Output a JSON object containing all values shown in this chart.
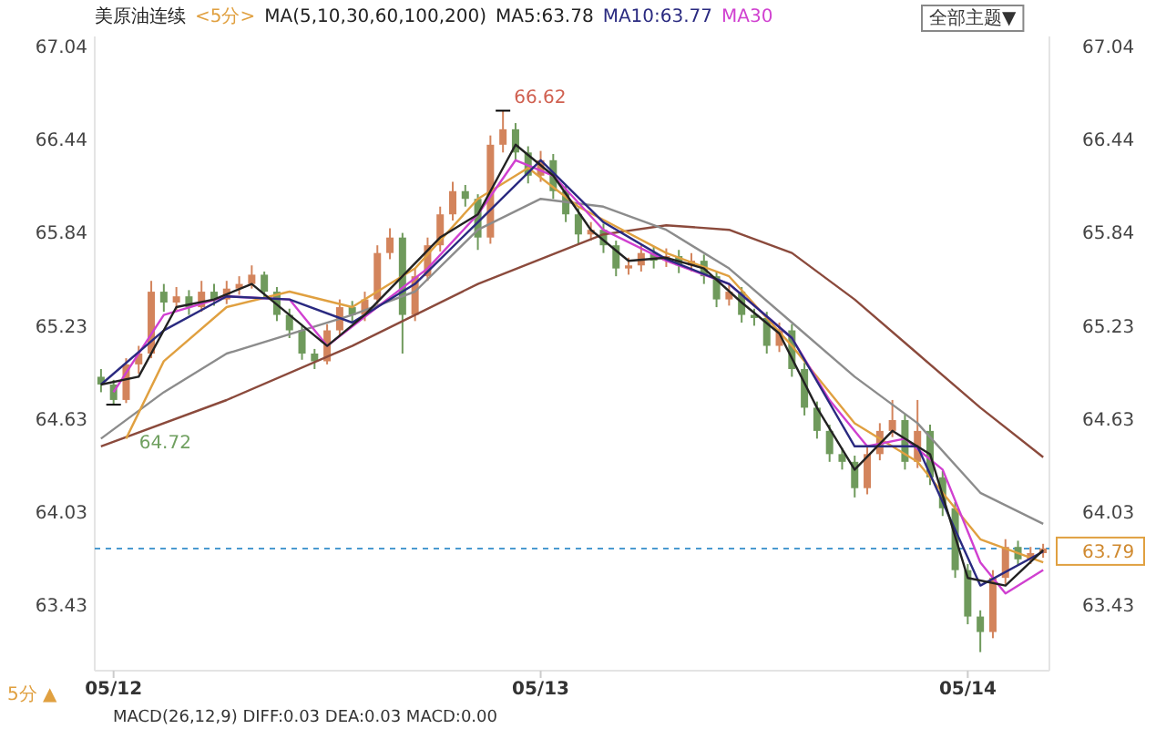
{
  "chart_data": {
    "type": "candlestick",
    "title": "美原油连续",
    "subtitle": "<5分>",
    "legend_title": "MA(5,10,30,60,100,200)",
    "legend": "top",
    "grid": false,
    "categories": [
      null,
      "05/12",
      null,
      null,
      null,
      null,
      null,
      null,
      null,
      null,
      null,
      null,
      null,
      null,
      null,
      null,
      null,
      null,
      null,
      null,
      null,
      null,
      null,
      null,
      null,
      null,
      null,
      null,
      null,
      null,
      null,
      null,
      null,
      null,
      null,
      "05/13",
      null,
      null,
      null,
      null,
      null,
      null,
      null,
      null,
      null,
      null,
      null,
      null,
      null,
      null,
      null,
      null,
      null,
      null,
      null,
      null,
      null,
      null,
      null,
      null,
      null,
      null,
      null,
      null,
      null,
      null,
      null,
      null,
      null,
      "05/14",
      null,
      null,
      null,
      null,
      null,
      null
    ],
    "ohlc": [
      [
        64.9,
        64.95,
        64.8,
        64.85
      ],
      [
        64.85,
        64.88,
        64.72,
        64.75
      ],
      [
        64.75,
        65.02,
        64.73,
        64.98
      ],
      [
        64.98,
        65.1,
        64.92,
        65.05
      ],
      [
        65.05,
        65.52,
        65.02,
        65.45
      ],
      [
        65.45,
        65.5,
        65.32,
        65.38
      ],
      [
        65.38,
        65.48,
        65.33,
        65.42
      ],
      [
        65.42,
        65.46,
        65.3,
        65.35
      ],
      [
        65.35,
        65.52,
        65.32,
        65.45
      ],
      [
        65.45,
        65.5,
        65.36,
        65.4
      ],
      [
        65.4,
        65.52,
        65.37,
        65.47
      ],
      [
        65.47,
        65.55,
        65.43,
        65.5
      ],
      [
        65.5,
        65.62,
        65.47,
        65.56
      ],
      [
        65.56,
        65.58,
        65.41,
        65.45
      ],
      [
        65.45,
        65.48,
        65.26,
        65.3
      ],
      [
        65.3,
        65.34,
        65.15,
        65.2
      ],
      [
        65.2,
        65.23,
        65.01,
        65.05
      ],
      [
        65.05,
        65.08,
        64.95,
        65.0
      ],
      [
        65.0,
        65.24,
        64.98,
        65.2
      ],
      [
        65.2,
        65.4,
        65.16,
        65.35
      ],
      [
        65.35,
        65.39,
        65.25,
        65.3
      ],
      [
        65.3,
        65.45,
        65.26,
        65.4
      ],
      [
        65.4,
        65.75,
        65.37,
        65.7
      ],
      [
        65.7,
        65.86,
        65.66,
        65.8
      ],
      [
        65.8,
        65.83,
        65.05,
        65.3
      ],
      [
        65.3,
        65.6,
        65.26,
        65.55
      ],
      [
        65.55,
        65.8,
        65.52,
        65.75
      ],
      [
        65.75,
        66.0,
        65.71,
        65.95
      ],
      [
        65.95,
        66.16,
        65.91,
        66.1
      ],
      [
        66.1,
        66.14,
        66.0,
        66.05
      ],
      [
        66.05,
        66.08,
        65.72,
        65.8
      ],
      [
        65.8,
        66.46,
        65.76,
        66.4
      ],
      [
        66.4,
        66.62,
        66.35,
        66.5
      ],
      [
        66.5,
        66.54,
        66.3,
        66.35
      ],
      [
        66.35,
        66.39,
        66.15,
        66.2
      ],
      [
        66.2,
        66.36,
        66.16,
        66.3
      ],
      [
        66.3,
        66.34,
        66.05,
        66.1
      ],
      [
        66.1,
        66.14,
        65.9,
        65.95
      ],
      [
        65.95,
        65.99,
        65.76,
        65.82
      ],
      [
        65.82,
        65.9,
        65.78,
        65.85
      ],
      [
        65.85,
        65.89,
        65.7,
        65.75
      ],
      [
        65.75,
        65.78,
        65.55,
        65.6
      ],
      [
        65.6,
        65.67,
        65.56,
        65.62
      ],
      [
        65.62,
        65.75,
        65.58,
        65.7
      ],
      [
        65.7,
        65.74,
        65.6,
        65.65
      ],
      [
        65.65,
        65.73,
        65.61,
        65.68
      ],
      [
        65.68,
        65.72,
        65.57,
        65.62
      ],
      [
        65.62,
        65.7,
        65.58,
        65.65
      ],
      [
        65.65,
        65.69,
        65.5,
        65.55
      ],
      [
        65.55,
        65.58,
        65.35,
        65.4
      ],
      [
        65.4,
        65.5,
        65.36,
        65.45
      ],
      [
        65.45,
        65.48,
        65.25,
        65.3
      ],
      [
        65.3,
        65.34,
        65.23,
        65.28
      ],
      [
        65.28,
        65.32,
        65.05,
        65.1
      ],
      [
        65.1,
        65.25,
        65.06,
        65.2
      ],
      [
        65.2,
        65.24,
        64.9,
        64.95
      ],
      [
        64.95,
        64.99,
        64.65,
        64.7
      ],
      [
        64.7,
        64.74,
        64.5,
        64.55
      ],
      [
        64.55,
        64.59,
        64.35,
        64.4
      ],
      [
        64.4,
        64.44,
        64.3,
        64.35
      ],
      [
        64.35,
        64.39,
        64.12,
        64.18
      ],
      [
        64.18,
        64.45,
        64.14,
        64.4
      ],
      [
        64.4,
        64.6,
        64.36,
        64.55
      ],
      [
        64.55,
        64.75,
        64.51,
        64.62
      ],
      [
        64.62,
        64.66,
        64.3,
        64.35
      ],
      [
        64.35,
        64.75,
        64.31,
        64.55
      ],
      [
        64.55,
        64.59,
        64.2,
        64.25
      ],
      [
        64.25,
        64.29,
        64.0,
        64.05
      ],
      [
        64.05,
        64.09,
        63.6,
        63.65
      ],
      [
        63.65,
        63.69,
        63.3,
        63.35
      ],
      [
        63.35,
        63.39,
        63.12,
        63.25
      ],
      [
        63.25,
        63.65,
        63.21,
        63.6
      ],
      [
        63.6,
        63.85,
        63.56,
        63.8
      ],
      [
        63.8,
        63.84,
        63.68,
        63.72
      ],
      [
        63.72,
        63.8,
        63.69,
        63.76
      ],
      [
        63.76,
        63.82,
        63.73,
        63.79
      ]
    ],
    "series": [
      {
        "type": "line",
        "color": "#8b4a3c",
        "values": [
          64.45,
          null,
          null,
          null,
          null,
          null,
          null,
          null,
          null,
          null,
          64.75,
          null,
          null,
          null,
          null,
          null,
          null,
          null,
          null,
          null,
          65.1,
          null,
          null,
          null,
          null,
          null,
          null,
          null,
          null,
          null,
          65.5,
          null,
          null,
          null,
          null,
          null,
          null,
          null,
          null,
          null,
          65.82,
          null,
          null,
          null,
          null,
          65.88,
          null,
          null,
          null,
          null,
          65.85,
          null,
          null,
          null,
          null,
          65.7,
          null,
          null,
          null,
          null,
          65.4,
          null,
          null,
          null,
          null,
          65.05,
          null,
          null,
          null,
          null,
          64.7,
          null,
          null,
          null,
          null,
          64.38
        ]
      },
      {
        "type": "line",
        "color": "#8c8c8c",
        "values": [
          64.5,
          null,
          null,
          null,
          null,
          64.8,
          null,
          null,
          null,
          null,
          65.05,
          null,
          null,
          null,
          null,
          null,
          null,
          null,
          null,
          null,
          65.3,
          null,
          null,
          null,
          null,
          65.45,
          null,
          null,
          null,
          null,
          65.85,
          null,
          null,
          null,
          null,
          66.05,
          null,
          null,
          null,
          null,
          66.0,
          null,
          null,
          null,
          null,
          65.85,
          null,
          null,
          null,
          null,
          65.6,
          null,
          null,
          null,
          null,
          65.25,
          null,
          null,
          null,
          null,
          64.9,
          null,
          null,
          null,
          null,
          64.6,
          null,
          null,
          null,
          null,
          64.15,
          null,
          null,
          null,
          null,
          63.95
        ]
      },
      {
        "type": "line",
        "color": "#e0a040",
        "values": [
          null,
          null,
          64.5,
          null,
          null,
          65.0,
          null,
          null,
          null,
          null,
          65.35,
          null,
          null,
          null,
          null,
          65.45,
          null,
          null,
          null,
          null,
          65.35,
          null,
          null,
          null,
          null,
          65.6,
          null,
          null,
          null,
          null,
          66.05,
          null,
          null,
          null,
          66.25,
          null,
          null,
          null,
          66.0,
          null,
          null,
          null,
          null,
          null,
          null,
          65.7,
          null,
          null,
          null,
          null,
          65.55,
          null,
          null,
          null,
          null,
          65.1,
          null,
          null,
          null,
          null,
          64.6,
          null,
          null,
          null,
          null,
          64.35,
          null,
          null,
          null,
          null,
          63.85,
          null,
          null,
          null,
          null,
          63.7
        ]
      },
      {
        "type": "line",
        "name": "MA30",
        "color": "#d040d0",
        "values": [
          null,
          64.8,
          null,
          null,
          null,
          65.3,
          null,
          null,
          null,
          null,
          65.42,
          null,
          null,
          null,
          null,
          65.4,
          null,
          null,
          65.1,
          null,
          null,
          null,
          65.35,
          null,
          null,
          null,
          65.6,
          null,
          null,
          null,
          65.95,
          null,
          null,
          66.3,
          null,
          null,
          66.2,
          null,
          null,
          null,
          65.85,
          null,
          null,
          null,
          null,
          65.65,
          null,
          null,
          null,
          null,
          65.5,
          null,
          null,
          null,
          null,
          65.15,
          null,
          null,
          64.75,
          null,
          null,
          64.45,
          null,
          null,
          64.5,
          null,
          null,
          64.3,
          null,
          null,
          63.7,
          null,
          63.5,
          null,
          null,
          63.65
        ]
      },
      {
        "type": "line",
        "name": "MA10:63.77",
        "color": "#2a2a80",
        "values": [
          64.85,
          null,
          null,
          null,
          null,
          65.2,
          null,
          null,
          null,
          null,
          65.42,
          null,
          null,
          null,
          null,
          65.4,
          null,
          null,
          null,
          null,
          65.25,
          null,
          null,
          null,
          null,
          65.5,
          null,
          null,
          null,
          null,
          65.9,
          null,
          null,
          null,
          null,
          66.3,
          null,
          null,
          null,
          null,
          65.9,
          null,
          null,
          null,
          null,
          65.66,
          null,
          null,
          null,
          null,
          65.5,
          null,
          null,
          null,
          null,
          65.15,
          null,
          null,
          null,
          null,
          64.45,
          null,
          null,
          null,
          null,
          64.45,
          null,
          null,
          null,
          null,
          63.55,
          null,
          null,
          null,
          null,
          63.77
        ]
      },
      {
        "type": "line",
        "name": "MA5:63.78",
        "color": "#222222",
        "values": [
          64.85,
          null,
          null,
          64.9,
          null,
          null,
          65.35,
          null,
          null,
          65.4,
          null,
          null,
          65.5,
          null,
          null,
          65.3,
          null,
          null,
          65.1,
          null,
          null,
          65.3,
          null,
          null,
          65.55,
          null,
          null,
          65.8,
          null,
          null,
          65.95,
          null,
          null,
          66.4,
          null,
          null,
          66.2,
          null,
          null,
          65.85,
          null,
          null,
          65.65,
          null,
          null,
          65.67,
          null,
          null,
          65.6,
          null,
          null,
          65.38,
          null,
          null,
          65.18,
          null,
          null,
          64.7,
          null,
          null,
          64.3,
          null,
          null,
          64.55,
          null,
          null,
          64.4,
          null,
          null,
          63.6,
          null,
          null,
          63.55,
          null,
          null,
          63.78
        ]
      }
    ],
    "ylim": [
      63.0,
      67.1
    ],
    "yticks": [
      63.43,
      64.03,
      64.63,
      65.23,
      65.84,
      66.44,
      67.04
    ],
    "y2lim": [
      63.0,
      67.1
    ],
    "y2ticks": [
      63.43,
      64.03,
      64.63,
      65.23,
      65.84,
      66.44,
      67.04
    ],
    "ref_lines": [
      {
        "axis": "y2",
        "value": 63.79,
        "label": "63.79",
        "color": "#4a9ad0",
        "line_style": "dashed"
      }
    ],
    "annotations": [
      "全部主题▼",
      "5分 ▲",
      "MACD(26,12,9) DIFF:0.03 DEA:0.03 MACD:0.00",
      "66.62",
      "64.72"
    ]
  }
}
